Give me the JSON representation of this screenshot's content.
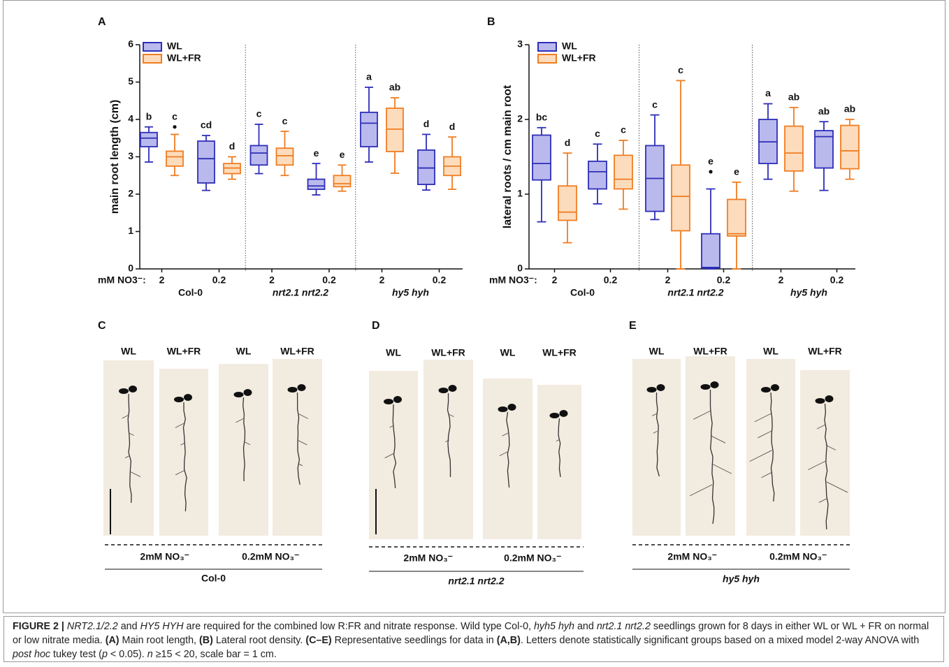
{
  "chart_data": [
    {
      "type": "box",
      "panel": "A",
      "ylabel": "main root length (cm)",
      "ylim": [
        0,
        6
      ],
      "yticks": [
        0,
        1,
        2,
        3,
        4,
        5,
        6
      ],
      "x_label": "mM NO3⁻:",
      "groups": [
        {
          "name": "Col-0",
          "italic": false,
          "doses": [
            "2",
            "0.2"
          ]
        },
        {
          "name": "nrt2.1 nrt2.2",
          "italic": true,
          "doses": [
            "2",
            "0.2"
          ]
        },
        {
          "name": "hy5 hyh",
          "italic": true,
          "doses": [
            "2",
            "0.2"
          ]
        }
      ],
      "series": [
        {
          "name": "WL",
          "color": "#2e2eb8",
          "fill": "#b9b9ee",
          "letters": [
            "b",
            "cd",
            "c",
            "e",
            "a",
            "d"
          ],
          "values": [
            {
              "min": 2.86,
              "q1": 3.27,
              "median": 3.5,
              "q3": 3.65,
              "max": 3.8
            },
            {
              "min": 2.1,
              "q1": 2.3,
              "median": 2.95,
              "q3": 3.42,
              "max": 3.57
            },
            {
              "min": 2.55,
              "q1": 2.78,
              "median": 3.1,
              "q3": 3.3,
              "max": 3.87
            },
            {
              "min": 1.98,
              "q1": 2.13,
              "median": 2.22,
              "q3": 2.4,
              "max": 2.82
            },
            {
              "min": 2.86,
              "q1": 3.27,
              "median": 3.9,
              "q3": 4.19,
              "max": 4.86
            },
            {
              "min": 2.11,
              "q1": 2.26,
              "median": 2.7,
              "q3": 3.18,
              "max": 3.6
            }
          ]
        },
        {
          "name": "WL+FR",
          "color": "#f07d22",
          "fill": "#fcdcbc",
          "letters": [
            "c",
            "d",
            "c",
            "e",
            "ab",
            "d"
          ],
          "values": [
            {
              "min": 2.5,
              "q1": 2.75,
              "median": 3.0,
              "q3": 3.15,
              "max": 3.6,
              "outliers": [
                3.8
              ]
            },
            {
              "min": 2.4,
              "q1": 2.55,
              "median": 2.7,
              "q3": 2.82,
              "max": 3.0
            },
            {
              "min": 2.5,
              "q1": 2.78,
              "median": 3.03,
              "q3": 3.23,
              "max": 3.68
            },
            {
              "min": 2.08,
              "q1": 2.2,
              "median": 2.28,
              "q3": 2.5,
              "max": 2.78
            },
            {
              "min": 2.56,
              "q1": 3.14,
              "median": 3.74,
              "q3": 4.3,
              "max": 4.58
            },
            {
              "min": 2.13,
              "q1": 2.5,
              "median": 2.75,
              "q3": 3.0,
              "max": 3.53
            }
          ]
        }
      ]
    },
    {
      "type": "box",
      "panel": "B",
      "ylabel": "lateral roots / cm main root",
      "ylim": [
        0,
        3
      ],
      "yticks": [
        0,
        1,
        2,
        3
      ],
      "x_label": "mM NO3⁻:",
      "groups": [
        {
          "name": "Col-0",
          "italic": false,
          "doses": [
            "2",
            "0.2"
          ]
        },
        {
          "name": "nrt2.1 nrt2.2",
          "italic": true,
          "doses": [
            "2",
            "0.2"
          ]
        },
        {
          "name": "hy5 hyh",
          "italic": true,
          "doses": [
            "2",
            "0.2"
          ]
        }
      ],
      "series": [
        {
          "name": "WL",
          "color": "#2e2eb8",
          "fill": "#b9b9ee",
          "letters": [
            "bc",
            "c",
            "c",
            "e",
            "a",
            "ab"
          ],
          "values": [
            {
              "min": 0.63,
              "q1": 1.19,
              "median": 1.41,
              "q3": 1.79,
              "max": 1.89
            },
            {
              "min": 0.87,
              "q1": 1.07,
              "median": 1.3,
              "q3": 1.44,
              "max": 1.67
            },
            {
              "min": 0.66,
              "q1": 0.77,
              "median": 1.21,
              "q3": 1.65,
              "max": 2.06
            },
            {
              "min": 0,
              "q1": 0.01,
              "median": 0.02,
              "q3": 0.47,
              "max": 1.07,
              "outliers": [
                1.3
              ]
            },
            {
              "min": 1.2,
              "q1": 1.41,
              "median": 1.7,
              "q3": 2.0,
              "max": 2.21
            },
            {
              "min": 1.05,
              "q1": 1.35,
              "median": 1.77,
              "q3": 1.85,
              "max": 1.97
            }
          ]
        },
        {
          "name": "WL+FR",
          "color": "#f07d22",
          "fill": "#fcdcbc",
          "letters": [
            "d",
            "c",
            "c",
            "e",
            "ab",
            "ab"
          ],
          "values": [
            {
              "min": 0.35,
              "q1": 0.65,
              "median": 0.76,
              "q3": 1.11,
              "max": 1.55
            },
            {
              "min": 0.8,
              "q1": 1.07,
              "median": 1.2,
              "q3": 1.52,
              "max": 1.72
            },
            {
              "min": 0,
              "q1": 0.51,
              "median": 0.97,
              "q3": 1.39,
              "max": 2.52
            },
            {
              "min": 0,
              "q1": 0.44,
              "median": 0.47,
              "q3": 0.93,
              "max": 1.16
            },
            {
              "min": 1.04,
              "q1": 1.31,
              "median": 1.55,
              "q3": 1.91,
              "max": 2.16
            },
            {
              "min": 1.2,
              "q1": 1.34,
              "median": 1.58,
              "q3": 1.92,
              "max": 2.0
            }
          ]
        }
      ]
    }
  ],
  "photo_panels": [
    {
      "label": "C",
      "columns": [
        "WL",
        "WL+FR",
        "WL",
        "WL+FR"
      ],
      "conditions": [
        "2mM NO₃⁻",
        "0.2mM NO₃⁻"
      ],
      "genotype": "Col-0",
      "italic": false
    },
    {
      "label": "D",
      "columns": [
        "WL",
        "WL+FR",
        "WL",
        "WL+FR"
      ],
      "conditions": [
        "2mM NO₃⁻",
        "0.2mM NO₃⁻"
      ],
      "genotype": "nrt2.1 nrt2.2",
      "italic": true
    },
    {
      "label": "E",
      "columns": [
        "WL",
        "WL+FR",
        "WL",
        "WL+FR"
      ],
      "conditions": [
        "2mM NO₃⁻",
        "0.2mM NO₃⁻"
      ],
      "genotype": "hy5 hyh",
      "italic": true
    }
  ],
  "caption": [
    {
      "text": "FIGURE 2 | ",
      "style": "bold"
    },
    {
      "text": "NRT2.1/2.2",
      "style": "italic"
    },
    {
      "text": " and ",
      "style": "normal"
    },
    {
      "text": "HY5 HYH",
      "style": "italic"
    },
    {
      "text": " are required for the combined low R:FR and nitrate response. Wild type Col-0, ",
      "style": "normal"
    },
    {
      "text": "hyh5 hyh",
      "style": "italic"
    },
    {
      "text": " and ",
      "style": "normal"
    },
    {
      "text": "nrt2.1 nrt2.2",
      "style": "italic"
    },
    {
      "text": " seedlings grown for 8 days in either WL or WL + FR on normal or low nitrate media. ",
      "style": "normal"
    },
    {
      "text": "(A)",
      "style": "bold"
    },
    {
      "text": " Main root length, ",
      "style": "normal"
    },
    {
      "text": "(B)",
      "style": "bold"
    },
    {
      "text": " Lateral root density. ",
      "style": "normal"
    },
    {
      "text": "(C–E)",
      "style": "bold"
    },
    {
      "text": " Representative seedlings for data in ",
      "style": "normal"
    },
    {
      "text": "(A,B)",
      "style": "bold"
    },
    {
      "text": ". Letters denote statistically significant groups based on a mixed model 2-way ANOVA with ",
      "style": "normal"
    },
    {
      "text": "post hoc",
      "style": "italic"
    },
    {
      "text": " tukey test (",
      "style": "normal"
    },
    {
      "text": "p",
      "style": "italic"
    },
    {
      "text": " < 0.05). ",
      "style": "normal"
    },
    {
      "text": "n",
      "style": "italic"
    },
    {
      "text": " ≥15 < 20, scale bar = 1 cm.",
      "style": "normal"
    }
  ]
}
